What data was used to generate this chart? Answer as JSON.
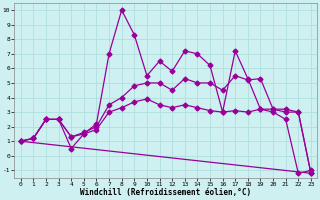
{
  "xlabel": "Windchill (Refroidissement éolien,°C)",
  "background_color": "#cef0f0",
  "grid_color": "#b0dede",
  "line_color": "#990099",
  "xlim": [
    -0.5,
    23.5
  ],
  "ylim": [
    -1.5,
    10.5
  ],
  "xticks": [
    0,
    1,
    2,
    3,
    4,
    5,
    6,
    7,
    8,
    9,
    10,
    11,
    12,
    13,
    14,
    15,
    16,
    17,
    18,
    19,
    20,
    21,
    22,
    23
  ],
  "yticks": [
    -1,
    0,
    1,
    2,
    3,
    4,
    5,
    6,
    7,
    8,
    9,
    10
  ],
  "line1_x": [
    0,
    1,
    2,
    3,
    4,
    5,
    6,
    7,
    8,
    9,
    10,
    11,
    12,
    13,
    14,
    15,
    16,
    17,
    18,
    19,
    20,
    21,
    22,
    23
  ],
  "line1_y": [
    1.0,
    1.2,
    2.5,
    2.5,
    0.5,
    1.5,
    2.2,
    7.0,
    10.0,
    8.3,
    5.5,
    6.5,
    5.8,
    7.2,
    7.0,
    6.2,
    3.0,
    7.2,
    5.3,
    3.2,
    3.0,
    2.5,
    -1.2,
    -1.0
  ],
  "line2_x": [
    0,
    1,
    2,
    3,
    4,
    5,
    6,
    7,
    8,
    9,
    10,
    11,
    12,
    13,
    14,
    15,
    16,
    17,
    18,
    19,
    20,
    21,
    22,
    23
  ],
  "line2_y": [
    1.0,
    1.2,
    2.5,
    2.5,
    1.3,
    1.6,
    2.0,
    3.5,
    4.0,
    4.8,
    5.0,
    5.0,
    4.5,
    5.3,
    5.0,
    5.0,
    4.5,
    5.5,
    5.2,
    5.3,
    3.2,
    3.2,
    3.0,
    -1.2
  ],
  "line3_x": [
    0,
    1,
    2,
    3,
    4,
    5,
    6,
    7,
    8,
    9,
    10,
    11,
    12,
    13,
    14,
    15,
    16,
    17,
    18,
    19,
    20,
    21,
    22,
    23
  ],
  "line3_y": [
    1.0,
    1.2,
    2.5,
    2.5,
    1.3,
    1.5,
    1.8,
    3.0,
    3.3,
    3.7,
    3.9,
    3.5,
    3.3,
    3.5,
    3.3,
    3.1,
    3.0,
    3.1,
    3.0,
    3.2,
    3.2,
    3.0,
    3.0,
    -1.2
  ],
  "line4_x": [
    0,
    23
  ],
  "line4_y": [
    1.0,
    -1.2
  ],
  "markersize": 2.5,
  "linewidth": 0.9
}
